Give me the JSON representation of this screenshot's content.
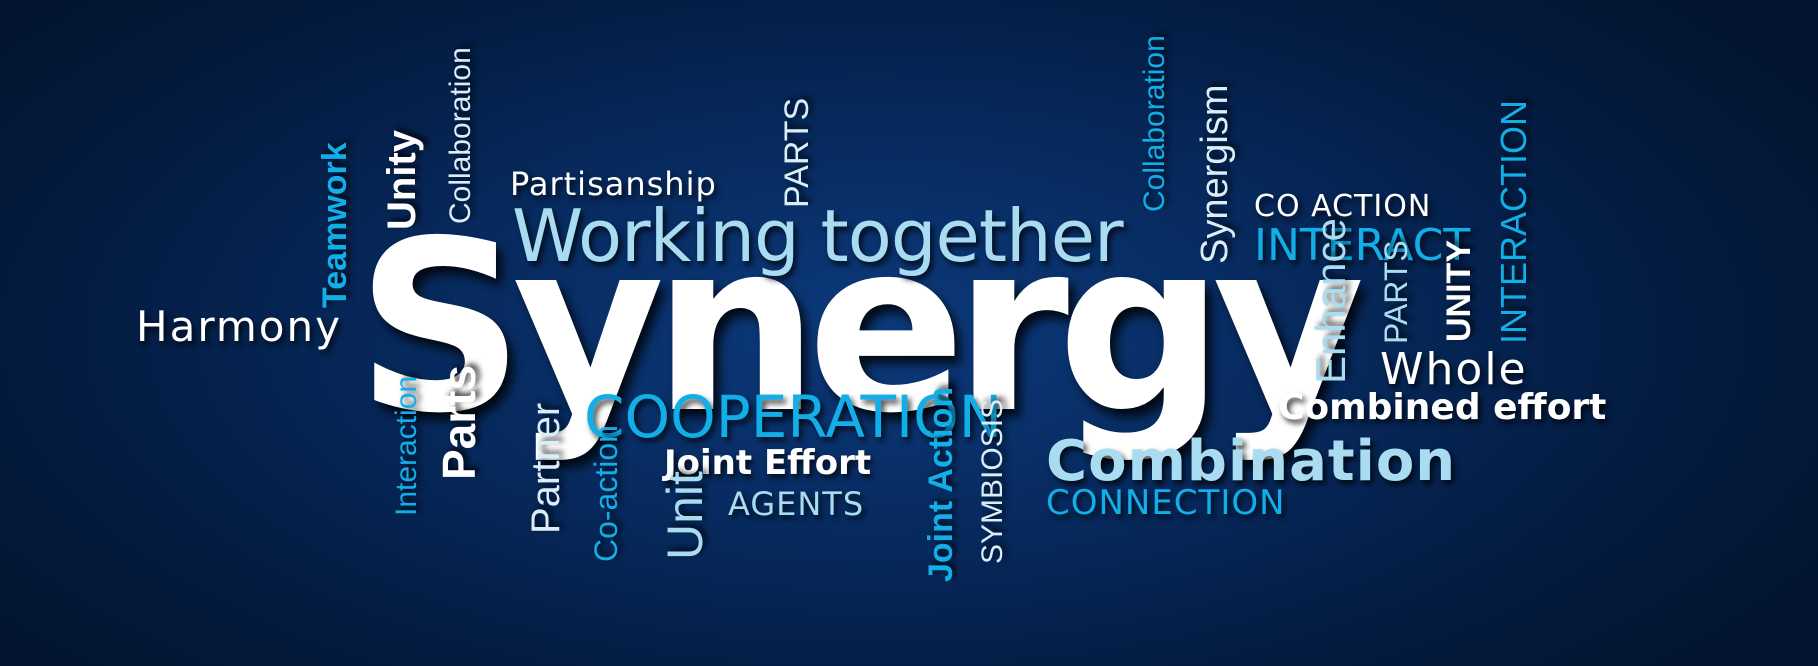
{
  "words": {
    "synergy": "Synergy",
    "working_together": "Working together",
    "partisanship": "Partisanship",
    "parts_top": "PARTS",
    "collaboration_left": "Collaboration",
    "unity": "Unity",
    "teamwork": "Teamwork",
    "harmony": "Harmony",
    "collaboration_right": "Collaboration",
    "synergism": "Synergism",
    "co_action_caps": "CO ACTION",
    "interact": "INTERACT",
    "interaction_caps": "INTERACTION",
    "unity_caps": "UNITY",
    "parts_right": "PARTS",
    "enhance": "Enhance",
    "whole": "Whole",
    "combined_effort": "Combined effort",
    "combination": "Combination",
    "connection": "CONNECTION",
    "cooperation": "COOPERATION",
    "joint_effort": "Joint Effort",
    "agents": "AGENTS",
    "interaction_left": "Interaction",
    "parts_left": "Parts",
    "partner": "Partner",
    "co_action": "Co-action",
    "unit": "Unit",
    "joint_action": "Joint Action",
    "symbiosis": "SYMBIOSIS"
  },
  "colors": {
    "background": "#041d44",
    "white": "#ffffff",
    "pale_blue": "#d9eef8",
    "light_blue": "#a9dcf0",
    "cyan": "#12aee8"
  }
}
